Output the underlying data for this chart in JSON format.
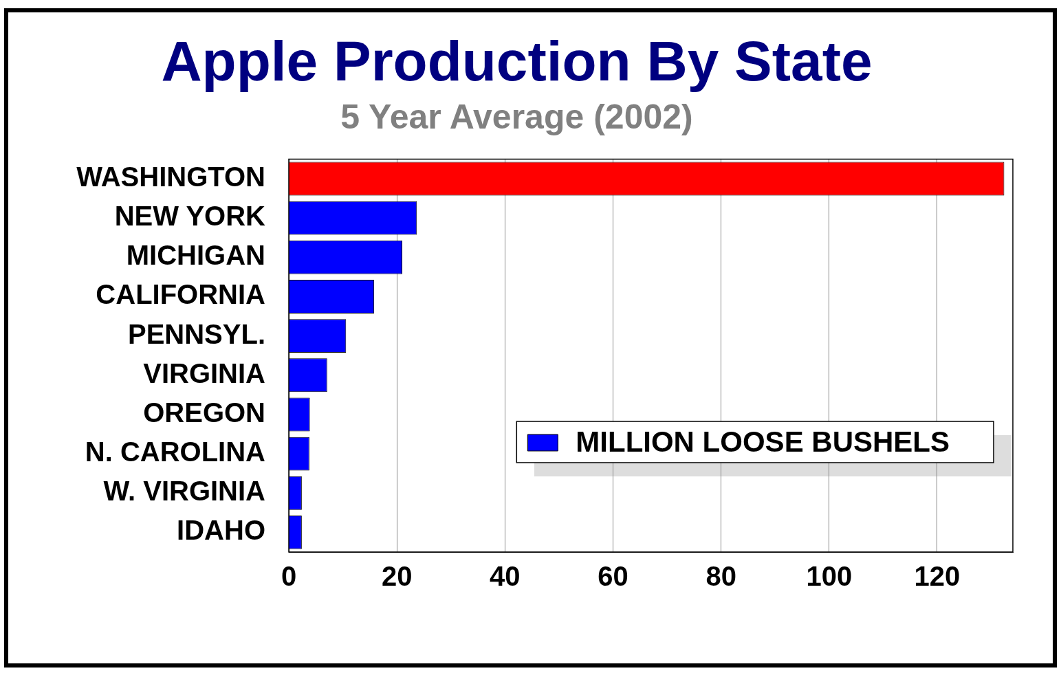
{
  "chart_data": {
    "type": "bar",
    "orientation": "horizontal",
    "title": "Apple Production By State",
    "subtitle": "5 Year Average (2002)",
    "categories": [
      "WASHINGTON",
      "NEW YORK",
      "MICHIGAN",
      "CALIFORNIA",
      "PENNSYL.",
      "VIRGINIA",
      "OREGON",
      "N. CAROLINA",
      "W. VIRGINIA",
      "IDAHO"
    ],
    "series": [
      {
        "name": "MILLION LOOSE BUSHELS",
        "color": "#0000ff",
        "colors": [
          "#ff0000",
          "#0000ff",
          "#0000ff",
          "#0000ff",
          "#0000ff",
          "#0000ff",
          "#0000ff",
          "#0000ff",
          "#0000ff",
          "#0000ff"
        ],
        "values": [
          132.4,
          23.7,
          21.0,
          15.8,
          10.6,
          7.1,
          3.9,
          3.8,
          2.4,
          2.4
        ]
      }
    ],
    "xlim": [
      0,
      134
    ],
    "xticks": [
      0,
      20,
      40,
      60,
      80,
      100,
      120
    ],
    "grid": "x",
    "legend": "bottom right"
  }
}
